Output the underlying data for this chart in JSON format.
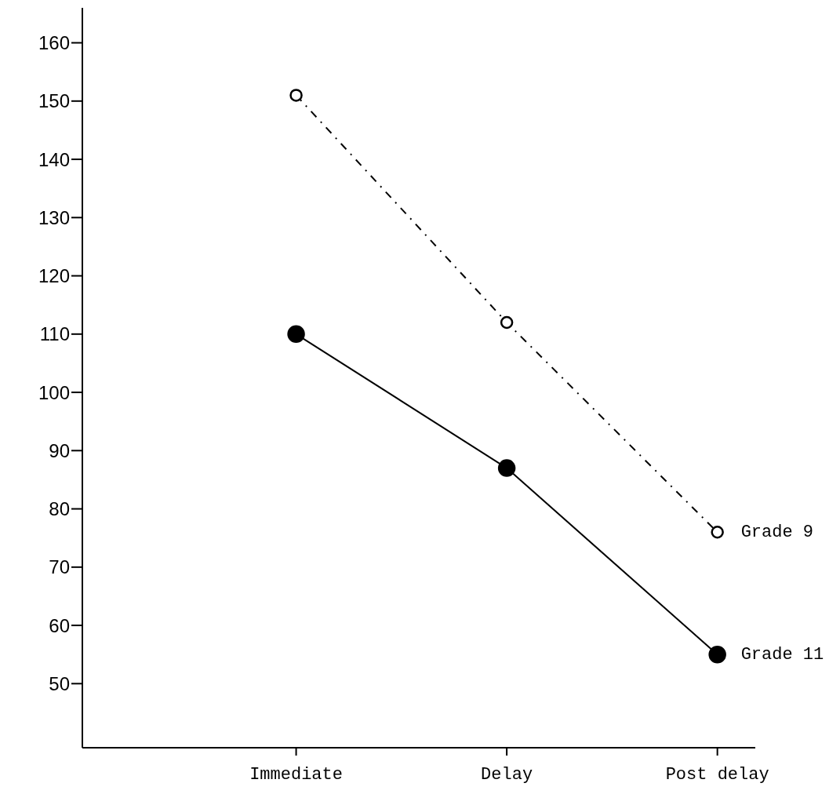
{
  "chart_data": {
    "type": "line",
    "categories": [
      "Immediate",
      "Delay",
      "Post delay"
    ],
    "series": [
      {
        "name": "Grade 9",
        "color": "#000000",
        "values": [
          151,
          112,
          76
        ],
        "line_style": "dashed",
        "marker": "circle"
      },
      {
        "name": "Grade 11",
        "color": "#000000",
        "values": [
          110,
          87,
          55
        ],
        "line_style": "solid",
        "marker": "circle"
      }
    ],
    "ylim": [
      39,
      166
    ],
    "yticks": [
      50,
      60,
      70,
      80,
      90,
      100,
      110,
      120,
      130,
      140,
      150,
      160
    ],
    "grid": false
  }
}
